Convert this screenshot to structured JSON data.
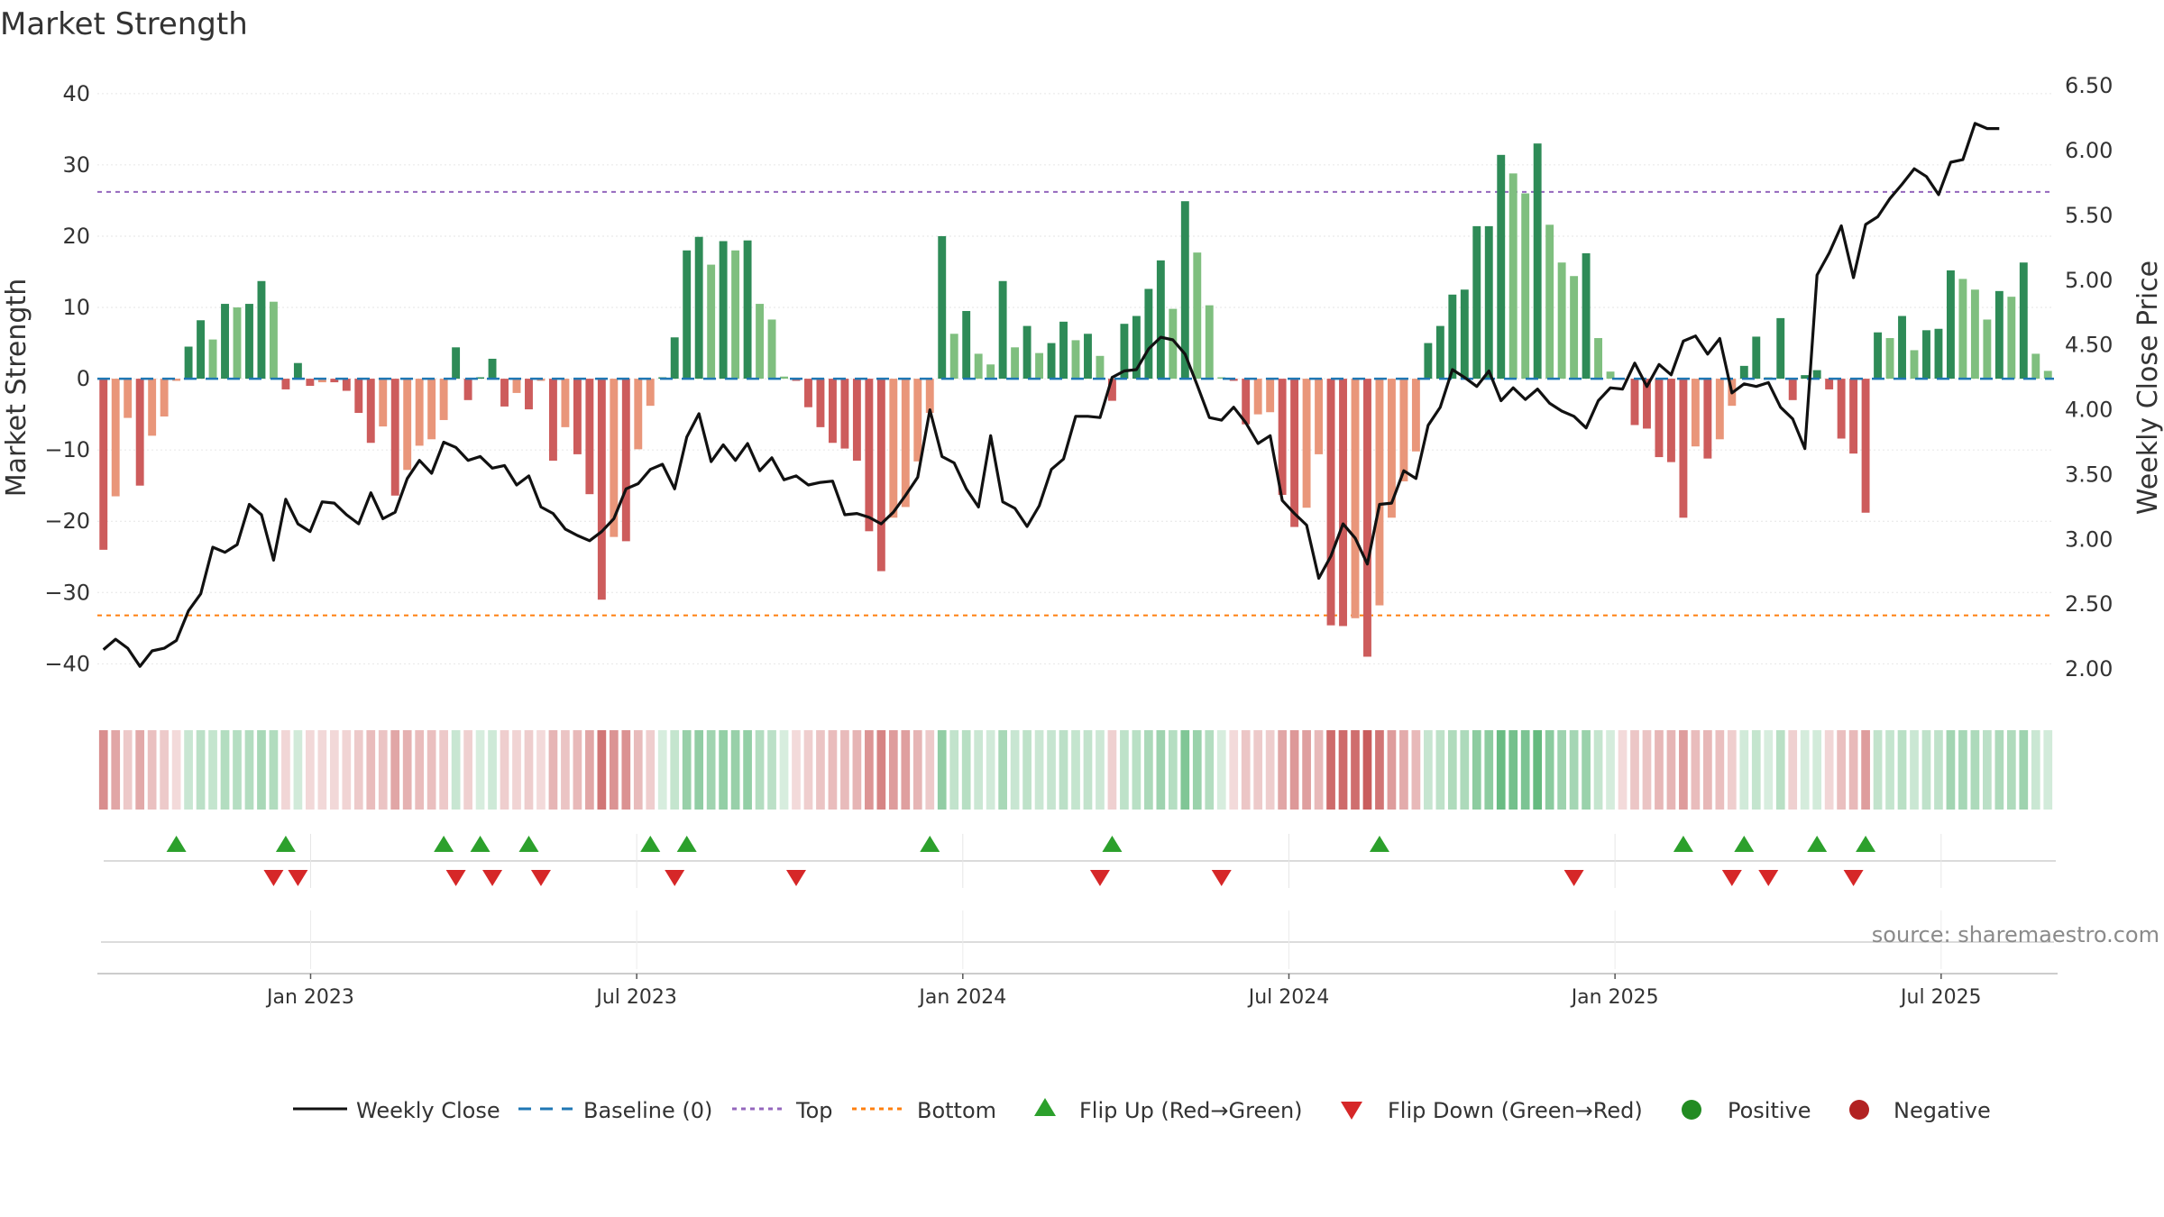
{
  "chart_data": {
    "type": "bar+line",
    "title": "Market Strength",
    "ylabel_left": "Market Strength",
    "ylabel_right": "Weekly Close Price",
    "ylim_left": [
      -44,
      42
    ],
    "ylim_right": [
      1.82,
      6.55
    ],
    "yticks_left": [
      40,
      30,
      20,
      10,
      0,
      -10,
      -20,
      -30,
      -40
    ],
    "yticks_right": [
      6.5,
      6.0,
      5.5,
      5.0,
      4.5,
      4.0,
      3.5,
      3.0,
      2.5,
      2.0
    ],
    "yticks_right_labels": [
      "6.50",
      "6.00",
      "5.50",
      "5.00",
      "4.50",
      "4.00",
      "3.50",
      "3.00",
      "2.50",
      "2.00"
    ],
    "ytick_left_labels": [
      "40",
      "30",
      "20",
      "10",
      "0",
      "−10",
      "−20",
      "−30",
      "−40"
    ],
    "top_line": 26.2,
    "bottom_line": -33.2,
    "baseline": 0,
    "x_start_week": 0,
    "x_end_week": 156,
    "x_ticks": [
      {
        "label": "Jan 2023",
        "week": 17
      },
      {
        "label": "Jul 2023",
        "week": 43
      },
      {
        "label": "Jan 2024",
        "week": 69
      },
      {
        "label": "Jul 2024",
        "week": 95
      },
      {
        "label": "Jan 2025",
        "week": 121
      },
      {
        "label": "Jul 2025",
        "week": 147
      }
    ],
    "strength": [
      -24,
      -16.5,
      -5.5,
      -15,
      -8,
      -5.3,
      -0.3,
      4.5,
      8.2,
      5.5,
      10.5,
      10,
      10.5,
      13.7,
      10.8,
      -1.5,
      2.2,
      -1,
      -0.5,
      -0.5,
      -1.7,
      -4.8,
      -9,
      -6.7,
      -16.4,
      -12.8,
      -9.4,
      -8.5,
      -5.8,
      4.4,
      -3,
      0.2,
      2.8,
      -3.9,
      -2,
      -4.3,
      -0.3,
      -11.5,
      -6.8,
      -10.6,
      -16.2,
      -31,
      -22.2,
      -22.8,
      -9.9,
      -3.8,
      0.2,
      5.8,
      18,
      19.9,
      16,
      19.3,
      18,
      19.4,
      10.5,
      8.3,
      0.3,
      -0.3,
      -4,
      -6.8,
      -9,
      -9.8,
      -11.5,
      -21.4,
      -27,
      -19.5,
      -18,
      -11.6,
      -4.8,
      20,
      6.3,
      9.5,
      3.5,
      2,
      13.7,
      4.4,
      7.4,
      3.6,
      5,
      8,
      5.4,
      6.3,
      3.2,
      -3.1,
      7.7,
      8.8,
      12.6,
      16.6,
      9.8,
      24.9,
      17.7,
      10.3,
      0.2,
      -0.3,
      -6.4,
      -5,
      -4.7,
      -16.3,
      -20.8,
      -18.1,
      -10.6,
      -34.6,
      -34.7,
      -33.6,
      -39,
      -31.8,
      -19.5,
      -14.4,
      -10.2,
      5,
      7.4,
      11.8,
      12.5,
      21.4,
      21.4,
      31.4,
      28.8,
      26,
      33,
      21.6,
      16.3,
      14.4,
      17.6,
      5.7,
      1,
      -0.1,
      -6.5,
      -7,
      -11,
      -11.7,
      -19.5,
      -9.5,
      -11.2,
      -8.5,
      -3.8,
      1.8,
      5.9,
      0.2,
      8.5,
      -3,
      0.5,
      1.2,
      -1.5,
      -8.4,
      -10.5,
      -18.8,
      6.5,
      5.7,
      8.8,
      4,
      6.8,
      7,
      15.2,
      14,
      12.5,
      8.3,
      12.3,
      11.5,
      16.3,
      3.5,
      1.1
    ],
    "weekly_close": [
      2.15,
      2.23,
      2.16,
      2.02,
      2.14,
      2.16,
      2.22,
      2.45,
      2.58,
      2.94,
      2.9,
      2.96,
      3.27,
      3.19,
      2.84,
      3.31,
      3.12,
      3.06,
      3.29,
      3.28,
      3.19,
      3.12,
      3.36,
      3.16,
      3.21,
      3.47,
      3.61,
      3.51,
      3.75,
      3.71,
      3.61,
      3.64,
      3.55,
      3.57,
      3.42,
      3.49,
      3.25,
      3.2,
      3.08,
      3.03,
      2.99,
      3.06,
      3.16,
      3.39,
      3.43,
      3.54,
      3.58,
      3.39,
      3.79,
      3.97,
      3.6,
      3.73,
      3.61,
      3.74,
      3.53,
      3.63,
      3.46,
      3.49,
      3.42,
      3.44,
      3.45,
      3.19,
      3.2,
      3.17,
      3.12,
      3.21,
      3.34,
      3.48,
      4.0,
      3.64,
      3.59,
      3.39,
      3.25,
      3.8,
      3.29,
      3.24,
      3.1,
      3.26,
      3.54,
      3.62,
      3.95,
      3.95,
      3.94,
      4.25,
      4.3,
      4.31,
      4.47,
      4.56,
      4.54,
      4.43,
      4.19,
      3.94,
      3.92,
      4.02,
      3.9,
      3.74,
      3.8,
      3.3,
      3.2,
      3.11,
      2.7,
      2.87,
      3.12,
      3.01,
      2.81,
      3.27,
      3.28,
      3.53,
      3.47,
      3.88,
      4.02,
      4.31,
      4.25,
      4.18,
      4.3,
      4.07,
      4.17,
      4.08,
      4.16,
      4.05,
      3.99,
      3.95,
      3.86,
      4.07,
      4.17,
      4.16,
      4.36,
      4.18,
      4.35,
      4.27,
      4.53,
      4.57,
      4.43,
      4.55,
      4.13,
      4.2,
      4.18,
      4.21,
      4.02,
      3.93,
      3.7,
      5.04,
      5.21,
      5.42,
      5.02,
      5.43,
      5.49,
      5.63,
      5.74,
      5.86,
      5.8,
      5.66,
      5.91,
      5.93,
      6.21,
      6.17,
      6.17
    ],
    "flip_up_weeks": [
      6,
      15,
      28,
      31,
      35,
      45,
      48,
      68,
      83,
      105,
      130,
      135,
      141,
      145
    ],
    "flip_down_weeks": [
      14,
      16,
      29,
      32,
      36,
      47,
      57,
      82,
      92,
      121,
      134,
      137,
      144
    ],
    "legend": [
      "Weekly Close",
      "Baseline (0)",
      "Top",
      "Bottom",
      "Flip Up (Red→Green)",
      "Flip Down (Green→Red)",
      "Positive",
      "Negative"
    ],
    "colors": {
      "pos_strong": "#2e8b57",
      "pos_light": "#7fbf7f",
      "neg_strong": "#cd5c5c",
      "neg_light": "#e9967a",
      "close_line": "#111111",
      "baseline": "#1f77b4",
      "top_line": "#9467bd",
      "bottom_line": "#ff7f0e",
      "flip_up": "#2ca02c",
      "flip_down": "#d62728",
      "positive_dot": "#228b22",
      "negative_dot": "#b22222"
    }
  },
  "source": "source: sharemaestro.com"
}
